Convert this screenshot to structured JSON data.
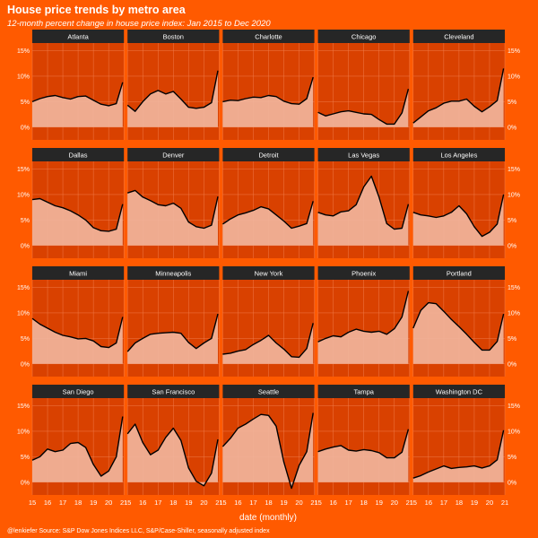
{
  "chart_data": {
    "type": "area",
    "title": "House price trends by metro area",
    "subtitle": "12-month percent change in house price index: Jan 2015 to Dec 2020",
    "caption": "@lenkiefer Source: S&P Dow Jones Indices LLC, S&P/Case-Shiller, seasonally adjusted index",
    "xlabel": "date (monthly)",
    "ylabel": "",
    "x_ticks": [
      2015,
      2016,
      2017,
      2018,
      2019,
      2020,
      2021
    ],
    "x_tick_labels": [
      "15",
      "16",
      "17",
      "18",
      "19",
      "20",
      "21"
    ],
    "xlim": [
      2015,
      2021
    ],
    "y_ticks": [
      0,
      5,
      10,
      15
    ],
    "y_tick_labels": [
      "0%",
      "5%",
      "10%",
      "15%"
    ],
    "ylim": [
      -2.5,
      16.5
    ],
    "grid": true,
    "colors": {
      "background": "#ff5a00",
      "panel": "#d94100",
      "strip": "#262626",
      "strip_text": "#ffffff",
      "area": "#f1b49b",
      "line": "#000000",
      "gridline": "#f07a48",
      "text": "#ffffff"
    },
    "x_points_years": [
      2015.0,
      2015.5,
      2016.0,
      2016.5,
      2017.0,
      2017.5,
      2018.0,
      2018.5,
      2019.0,
      2019.5,
      2020.0,
      2020.5,
      2020.92
    ],
    "series": [
      {
        "name": "Atlanta",
        "values": [
          5.0,
          5.6,
          6.0,
          6.2,
          5.8,
          5.5,
          6.0,
          6.1,
          5.3,
          4.5,
          4.2,
          4.6,
          8.8
        ]
      },
      {
        "name": "Boston",
        "values": [
          4.3,
          3.1,
          5.0,
          6.5,
          7.2,
          6.5,
          7.0,
          5.5,
          3.9,
          3.7,
          3.9,
          4.8,
          11.1
        ]
      },
      {
        "name": "Charlotte",
        "values": [
          5.0,
          5.3,
          5.2,
          5.6,
          5.9,
          5.8,
          6.2,
          6.0,
          5.1,
          4.6,
          4.5,
          5.6,
          9.8
        ]
      },
      {
        "name": "Chicago",
        "values": [
          2.9,
          2.2,
          2.6,
          3.0,
          3.2,
          2.9,
          2.6,
          2.5,
          1.5,
          0.6,
          0.6,
          2.8,
          7.5
        ]
      },
      {
        "name": "Cleveland",
        "values": [
          0.8,
          2.0,
          3.2,
          3.8,
          4.7,
          5.1,
          5.1,
          5.5,
          4.1,
          3.0,
          4.0,
          5.2,
          11.5
        ]
      },
      {
        "name": "Dallas",
        "values": [
          9.0,
          9.2,
          8.5,
          7.8,
          7.4,
          6.8,
          6.0,
          5.0,
          3.5,
          2.9,
          2.8,
          3.2,
          8.1
        ]
      },
      {
        "name": "Denver",
        "values": [
          10.3,
          10.8,
          9.5,
          8.8,
          8.0,
          7.8,
          8.3,
          7.3,
          4.6,
          3.7,
          3.4,
          4.0,
          9.6
        ]
      },
      {
        "name": "Detroit",
        "values": [
          4.2,
          5.2,
          6.0,
          6.4,
          6.9,
          7.6,
          7.2,
          6.0,
          4.8,
          3.4,
          3.8,
          4.3,
          8.7
        ]
      },
      {
        "name": "Las Vegas",
        "values": [
          6.5,
          6.0,
          5.8,
          6.6,
          6.8,
          8.0,
          11.5,
          13.6,
          9.5,
          4.3,
          3.2,
          3.4,
          8.1
        ]
      },
      {
        "name": "Los Angeles",
        "values": [
          6.5,
          6.0,
          5.8,
          5.5,
          5.8,
          6.5,
          7.8,
          6.2,
          3.7,
          1.8,
          2.6,
          4.2,
          10.0
        ]
      },
      {
        "name": "Miami",
        "values": [
          8.9,
          7.8,
          7.0,
          6.2,
          5.6,
          5.3,
          4.9,
          5.0,
          4.5,
          3.4,
          3.2,
          4.1,
          9.2
        ]
      },
      {
        "name": "Minneapolis",
        "values": [
          2.4,
          4.1,
          5.0,
          5.8,
          6.0,
          6.1,
          6.2,
          6.0,
          4.2,
          3.0,
          4.1,
          5.0,
          9.8
        ]
      },
      {
        "name": "New York",
        "values": [
          1.9,
          2.1,
          2.5,
          2.8,
          3.8,
          4.6,
          5.6,
          4.1,
          2.9,
          1.4,
          1.3,
          3.0,
          8.0
        ]
      },
      {
        "name": "Phoenix",
        "values": [
          4.3,
          5.0,
          5.5,
          5.3,
          6.2,
          6.8,
          6.4,
          6.2,
          6.4,
          5.8,
          6.9,
          9.2,
          14.3
        ]
      },
      {
        "name": "Portland",
        "values": [
          7.0,
          10.5,
          12.0,
          11.8,
          10.3,
          8.7,
          7.3,
          5.8,
          4.2,
          2.7,
          2.7,
          4.4,
          9.8
        ]
      },
      {
        "name": "San Diego",
        "values": [
          4.3,
          5.0,
          6.5,
          6.0,
          6.3,
          7.6,
          7.8,
          6.8,
          3.5,
          1.2,
          2.2,
          5.0,
          12.9
        ]
      },
      {
        "name": "San Francisco",
        "values": [
          9.5,
          11.4,
          7.8,
          5.4,
          6.3,
          8.8,
          10.6,
          8.2,
          2.8,
          0.2,
          -0.7,
          1.8,
          8.4
        ]
      },
      {
        "name": "Seattle",
        "values": [
          7.0,
          8.6,
          10.6,
          11.4,
          12.4,
          13.3,
          13.1,
          11.0,
          4.0,
          -1.2,
          3.3,
          6.0,
          13.6
        ]
      },
      {
        "name": "Tampa",
        "values": [
          6.0,
          6.5,
          6.9,
          7.2,
          6.3,
          6.1,
          6.4,
          6.2,
          5.8,
          4.8,
          4.8,
          5.9,
          10.4
        ]
      },
      {
        "name": "Washington DC",
        "values": [
          0.8,
          1.3,
          2.0,
          2.6,
          3.2,
          2.7,
          2.9,
          3.0,
          3.2,
          2.8,
          3.2,
          4.4,
          10.2
        ]
      }
    ]
  }
}
